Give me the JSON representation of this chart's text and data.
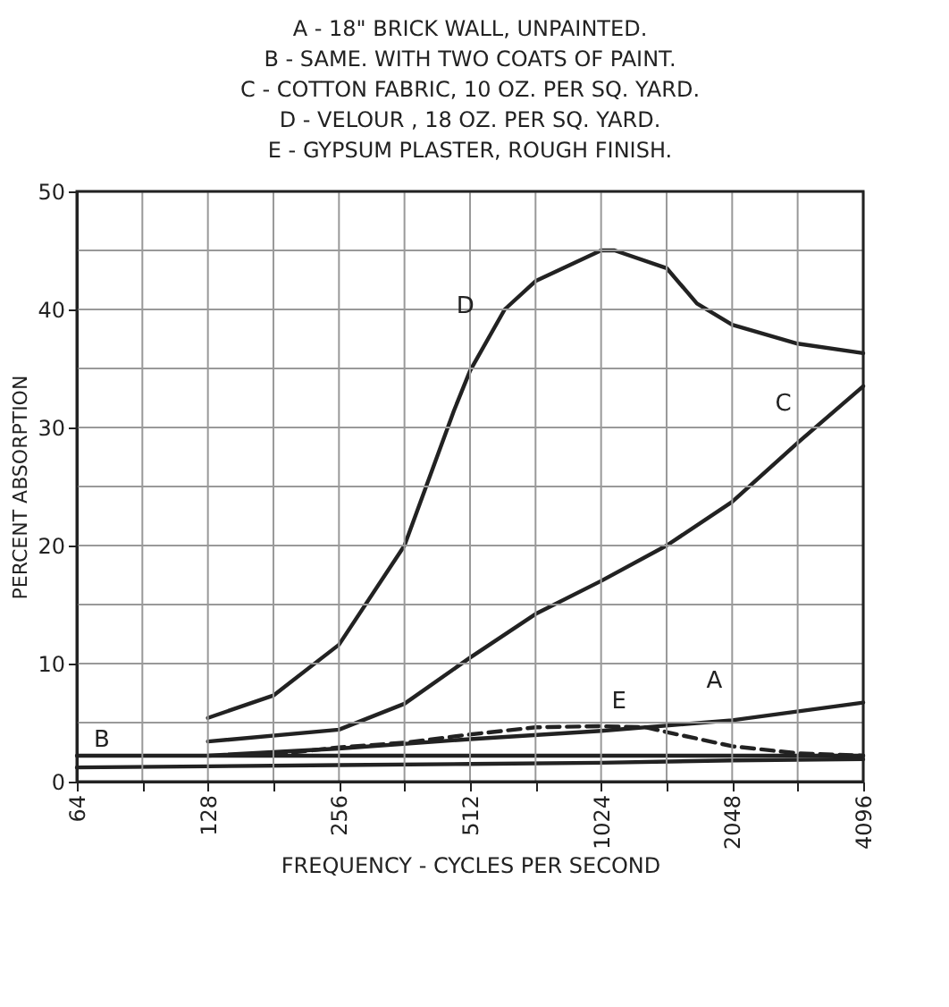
{
  "chart_data": {
    "type": "line",
    "annotations": [
      "A - 18\" BRICK WALL, UNPAINTED.",
      "B - SAME. WITH TWO COATS OF PAINT.",
      "C - COTTON FABRIC, 10 OZ. PER SQ. YARD.",
      "D - VELOUR , 18 OZ. PER SQ. YARD.",
      "E - GYPSUM PLASTER, ROUGH FINISH."
    ],
    "xlabel": "FREQUENCY - CYCLES PER SECOND",
    "ylabel": "PERCENT ABSORPTION",
    "log": "x",
    "xlim": [
      64,
      4096
    ],
    "ylim": [
      0,
      50
    ],
    "xticks": [
      64,
      {
        "value": 90.5,
        "label": null
      },
      128,
      {
        "value": 181,
        "label": null
      },
      256,
      {
        "value": 362,
        "label": null
      },
      512,
      {
        "value": 724,
        "label": null
      },
      1024,
      {
        "value": 1448,
        "label": null
      },
      2048,
      {
        "value": 2896,
        "label": null
      },
      4096
    ],
    "yticks": [
      0,
      {
        "value": 5,
        "label": null
      },
      10,
      {
        "value": 15,
        "label": null
      },
      20,
      {
        "value": 25,
        "label": null
      },
      30,
      {
        "value": 35,
        "label": null
      },
      40,
      {
        "value": 45,
        "label": null
      },
      50
    ],
    "grid": true,
    "marker": "none",
    "series": [
      {
        "name": "A",
        "color": "#222222",
        "line_style": "solid",
        "x": [
          128,
          256,
          512,
          1024,
          2048,
          4096
        ],
        "values": [
          2.2,
          2.8,
          3.6,
          4.3,
          5.2,
          6.7
        ]
      },
      {
        "name": "B",
        "color": "#222222",
        "line_style": "solid",
        "x": [
          64,
          128,
          256,
          512,
          1024,
          2048,
          4096
        ],
        "values": [
          2.2,
          2.2,
          2.2,
          2.2,
          2.2,
          2.2,
          2.2
        ]
      },
      {
        "name": "C",
        "color": "#222222",
        "line_style": "solid",
        "x": [
          128,
          256,
          362,
          512,
          724,
          1024,
          1448,
          2048,
          2896,
          4096
        ],
        "values": [
          3.4,
          4.4,
          6.6,
          10.5,
          14.2,
          17.0,
          20.0,
          23.7,
          28.7,
          33.5
        ]
      },
      {
        "name": "D",
        "color": "#222222",
        "line_style": "solid",
        "x": [
          128,
          181,
          256,
          362,
          470,
          512,
          615,
          724,
          1024,
          1100,
          1448,
          1700,
          2048,
          2896,
          4096
        ],
        "values": [
          5.4,
          7.3,
          11.6,
          20.0,
          31.4,
          34.8,
          40.0,
          42.4,
          45.0,
          45.0,
          43.5,
          40.5,
          38.7,
          37.1,
          36.3
        ]
      },
      {
        "name": "E",
        "color": "#222222",
        "line_style": "dashed",
        "x": [
          181,
          256,
          362,
          512,
          724,
          1024,
          1300,
          1448,
          2048,
          2896,
          4096
        ],
        "values": [
          2.3,
          2.9,
          3.3,
          4.0,
          4.6,
          4.7,
          4.6,
          4.2,
          3.0,
          2.4,
          2.2
        ]
      },
      {
        "color": "#222222",
        "line_style": "solid",
        "x": [
          64,
          128,
          256,
          512,
          1024,
          2048,
          4096
        ],
        "values": [
          1.2,
          1.3,
          1.4,
          1.5,
          1.6,
          1.8,
          1.9
        ]
      }
    ]
  }
}
